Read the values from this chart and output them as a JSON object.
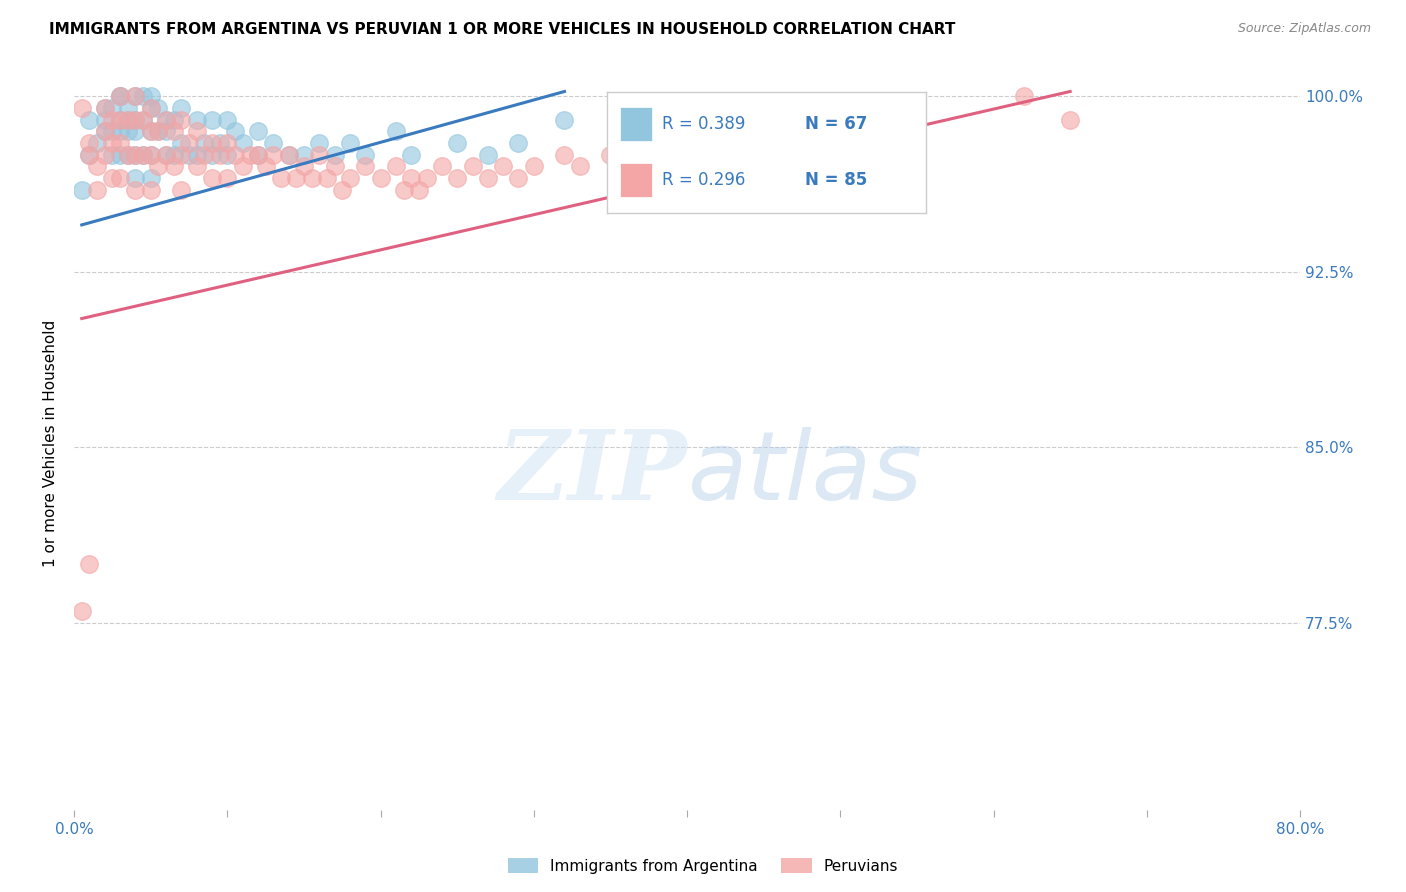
{
  "title": "IMMIGRANTS FROM ARGENTINA VS PERUVIAN 1 OR MORE VEHICLES IN HOUSEHOLD CORRELATION CHART",
  "source": "Source: ZipAtlas.com",
  "ylabel": "1 or more Vehicles in Household",
  "xlim": [
    0.0,
    0.8
  ],
  "ylim": [
    0.695,
    1.008
  ],
  "yticks": [
    0.775,
    0.85,
    0.925,
    1.0
  ],
  "ytick_labels": [
    "77.5%",
    "85.0%",
    "92.5%",
    "100.0%"
  ],
  "xticks": [
    0.0,
    0.1,
    0.2,
    0.3,
    0.4,
    0.5,
    0.6,
    0.7,
    0.8
  ],
  "xtick_labels": [
    "0.0%",
    "",
    "",
    "",
    "",
    "",
    "",
    "",
    "80.0%"
  ],
  "argentina_R": 0.389,
  "argentina_N": 67,
  "peru_R": 0.296,
  "peru_N": 85,
  "argentina_color": "#92c5de",
  "peru_color": "#f4a5a5",
  "argentina_line_color": "#3a7abf",
  "peru_line_color": "#e06080",
  "legend_label_argentina": "Immigrants from Argentina",
  "legend_label_peru": "Peruvians",
  "legend_text_color": "#3a7abf",
  "argentina_x": [
    0.005,
    0.01,
    0.01,
    0.015,
    0.02,
    0.02,
    0.02,
    0.025,
    0.025,
    0.025,
    0.03,
    0.03,
    0.03,
    0.03,
    0.03,
    0.035,
    0.035,
    0.035,
    0.035,
    0.04,
    0.04,
    0.04,
    0.04,
    0.04,
    0.045,
    0.045,
    0.045,
    0.05,
    0.05,
    0.05,
    0.05,
    0.05,
    0.055,
    0.055,
    0.06,
    0.06,
    0.06,
    0.065,
    0.065,
    0.07,
    0.07,
    0.075,
    0.08,
    0.08,
    0.085,
    0.09,
    0.09,
    0.095,
    0.1,
    0.1,
    0.105,
    0.11,
    0.12,
    0.12,
    0.13,
    0.14,
    0.15,
    0.16,
    0.17,
    0.18,
    0.19,
    0.21,
    0.22,
    0.25,
    0.27,
    0.29,
    0.32
  ],
  "argentina_y": [
    0.96,
    0.99,
    0.975,
    0.98,
    0.995,
    0.99,
    0.985,
    0.995,
    0.985,
    0.975,
    1.0,
    1.0,
    0.99,
    0.985,
    0.975,
    0.995,
    0.99,
    0.985,
    0.975,
    1.0,
    0.99,
    0.985,
    0.975,
    0.965,
    1.0,
    0.99,
    0.975,
    1.0,
    0.995,
    0.985,
    0.975,
    0.965,
    0.995,
    0.985,
    0.99,
    0.985,
    0.975,
    0.99,
    0.975,
    0.995,
    0.98,
    0.975,
    0.99,
    0.975,
    0.98,
    0.99,
    0.975,
    0.98,
    0.99,
    0.975,
    0.985,
    0.98,
    0.985,
    0.975,
    0.98,
    0.975,
    0.975,
    0.98,
    0.975,
    0.98,
    0.975,
    0.985,
    0.975,
    0.98,
    0.975,
    0.98,
    0.99
  ],
  "peru_x": [
    0.005,
    0.005,
    0.01,
    0.01,
    0.01,
    0.015,
    0.015,
    0.02,
    0.02,
    0.02,
    0.025,
    0.025,
    0.025,
    0.03,
    0.03,
    0.03,
    0.03,
    0.035,
    0.035,
    0.04,
    0.04,
    0.04,
    0.04,
    0.045,
    0.045,
    0.05,
    0.05,
    0.05,
    0.05,
    0.055,
    0.055,
    0.06,
    0.06,
    0.065,
    0.065,
    0.07,
    0.07,
    0.07,
    0.075,
    0.08,
    0.08,
    0.085,
    0.09,
    0.09,
    0.095,
    0.1,
    0.1,
    0.105,
    0.11,
    0.115,
    0.12,
    0.125,
    0.13,
    0.135,
    0.14,
    0.145,
    0.15,
    0.155,
    0.16,
    0.165,
    0.17,
    0.175,
    0.18,
    0.19,
    0.2,
    0.21,
    0.215,
    0.22,
    0.225,
    0.23,
    0.24,
    0.25,
    0.26,
    0.27,
    0.28,
    0.29,
    0.3,
    0.32,
    0.33,
    0.35,
    0.38,
    0.42,
    0.5,
    0.62,
    0.65
  ],
  "peru_y": [
    0.78,
    0.995,
    0.98,
    0.975,
    0.8,
    0.97,
    0.96,
    0.995,
    0.985,
    0.975,
    0.99,
    0.98,
    0.965,
    1.0,
    0.99,
    0.98,
    0.965,
    0.99,
    0.975,
    1.0,
    0.99,
    0.975,
    0.96,
    0.99,
    0.975,
    0.995,
    0.985,
    0.975,
    0.96,
    0.985,
    0.97,
    0.99,
    0.975,
    0.985,
    0.97,
    0.99,
    0.975,
    0.96,
    0.98,
    0.985,
    0.97,
    0.975,
    0.98,
    0.965,
    0.975,
    0.98,
    0.965,
    0.975,
    0.97,
    0.975,
    0.975,
    0.97,
    0.975,
    0.965,
    0.975,
    0.965,
    0.97,
    0.965,
    0.975,
    0.965,
    0.97,
    0.96,
    0.965,
    0.97,
    0.965,
    0.97,
    0.96,
    0.965,
    0.96,
    0.965,
    0.97,
    0.965,
    0.97,
    0.965,
    0.97,
    0.965,
    0.97,
    0.975,
    0.97,
    0.975,
    0.975,
    0.98,
    0.985,
    1.0,
    0.99
  ]
}
